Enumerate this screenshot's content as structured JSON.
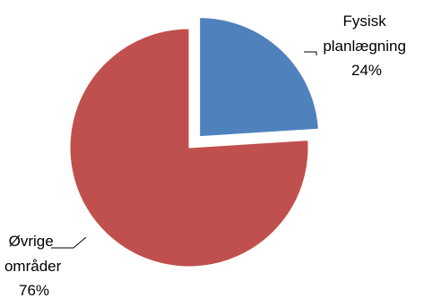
{
  "chart_data": {
    "type": "pie",
    "title": "",
    "legend": "none",
    "exploded": true,
    "slices": [
      {
        "name": "Fysisk planlægning",
        "label_lines": [
          "Fysisk",
          "planlægning"
        ],
        "value": 24,
        "percent_label": "24%",
        "color": "#4f81bd"
      },
      {
        "name": "Øvrige områder",
        "label_lines": [
          "Øvrige",
          "områder"
        ],
        "value": 76,
        "percent_label": "76%",
        "color": "#c0504d"
      }
    ]
  }
}
